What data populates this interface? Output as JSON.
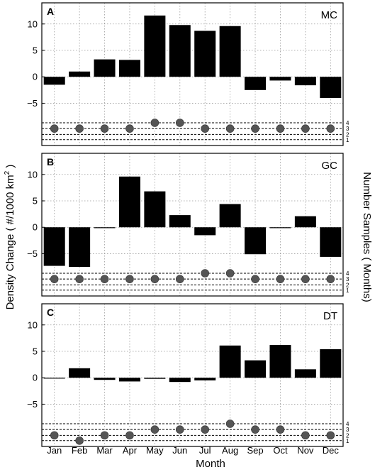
{
  "chart_data": {
    "type": "bar",
    "categories": [
      "Jan",
      "Feb",
      "Mar",
      "Apr",
      "May",
      "Jun",
      "Jul",
      "Aug",
      "Sep",
      "Oct",
      "Nov",
      "Dec"
    ],
    "xlabel": "Month",
    "ylabel": "Density Change ( #/1000 km",
    "ylabel_sup": "2",
    "ylabel_tail": " )",
    "ylabel_right": "Number Samples ( Months)",
    "ylim": [
      -13,
      14
    ],
    "yticks": [
      10,
      5,
      0,
      -5
    ],
    "ytick_labels": [
      "10",
      "5",
      "0",
      "−5"
    ],
    "sample_levels": [
      4,
      3,
      2,
      1
    ],
    "sample_levels_y": [
      -8.7,
      -9.8,
      -10.9,
      -11.9
    ],
    "bar_color": "#000000",
    "dot_color": "#555555",
    "panels": [
      {
        "letter": "A",
        "code": "MC",
        "values": [
          -1.5,
          1.0,
          3.3,
          3.2,
          11.6,
          9.8,
          8.7,
          9.6,
          -2.5,
          -0.7,
          -1.6,
          -4.0
        ],
        "samples": [
          3,
          3,
          3,
          3,
          4,
          4,
          3,
          3,
          3,
          3,
          3,
          3
        ]
      },
      {
        "letter": "B",
        "code": "GC",
        "values": [
          -7.3,
          -7.5,
          -0.1,
          9.6,
          6.8,
          2.3,
          -1.5,
          4.4,
          -5.1,
          0.0,
          2.1,
          -5.6
        ],
        "samples": [
          3,
          3,
          3,
          3,
          3,
          3,
          4,
          4,
          3,
          3,
          3,
          3
        ]
      },
      {
        "letter": "C",
        "code": "DT",
        "values": [
          -0.1,
          1.8,
          -0.4,
          -0.7,
          -0.2,
          -0.8,
          -0.5,
          6.1,
          3.3,
          6.2,
          1.6,
          5.4
        ],
        "samples": [
          2,
          1,
          2,
          2,
          3,
          3,
          3,
          4,
          3,
          3,
          2,
          2
        ]
      }
    ]
  }
}
